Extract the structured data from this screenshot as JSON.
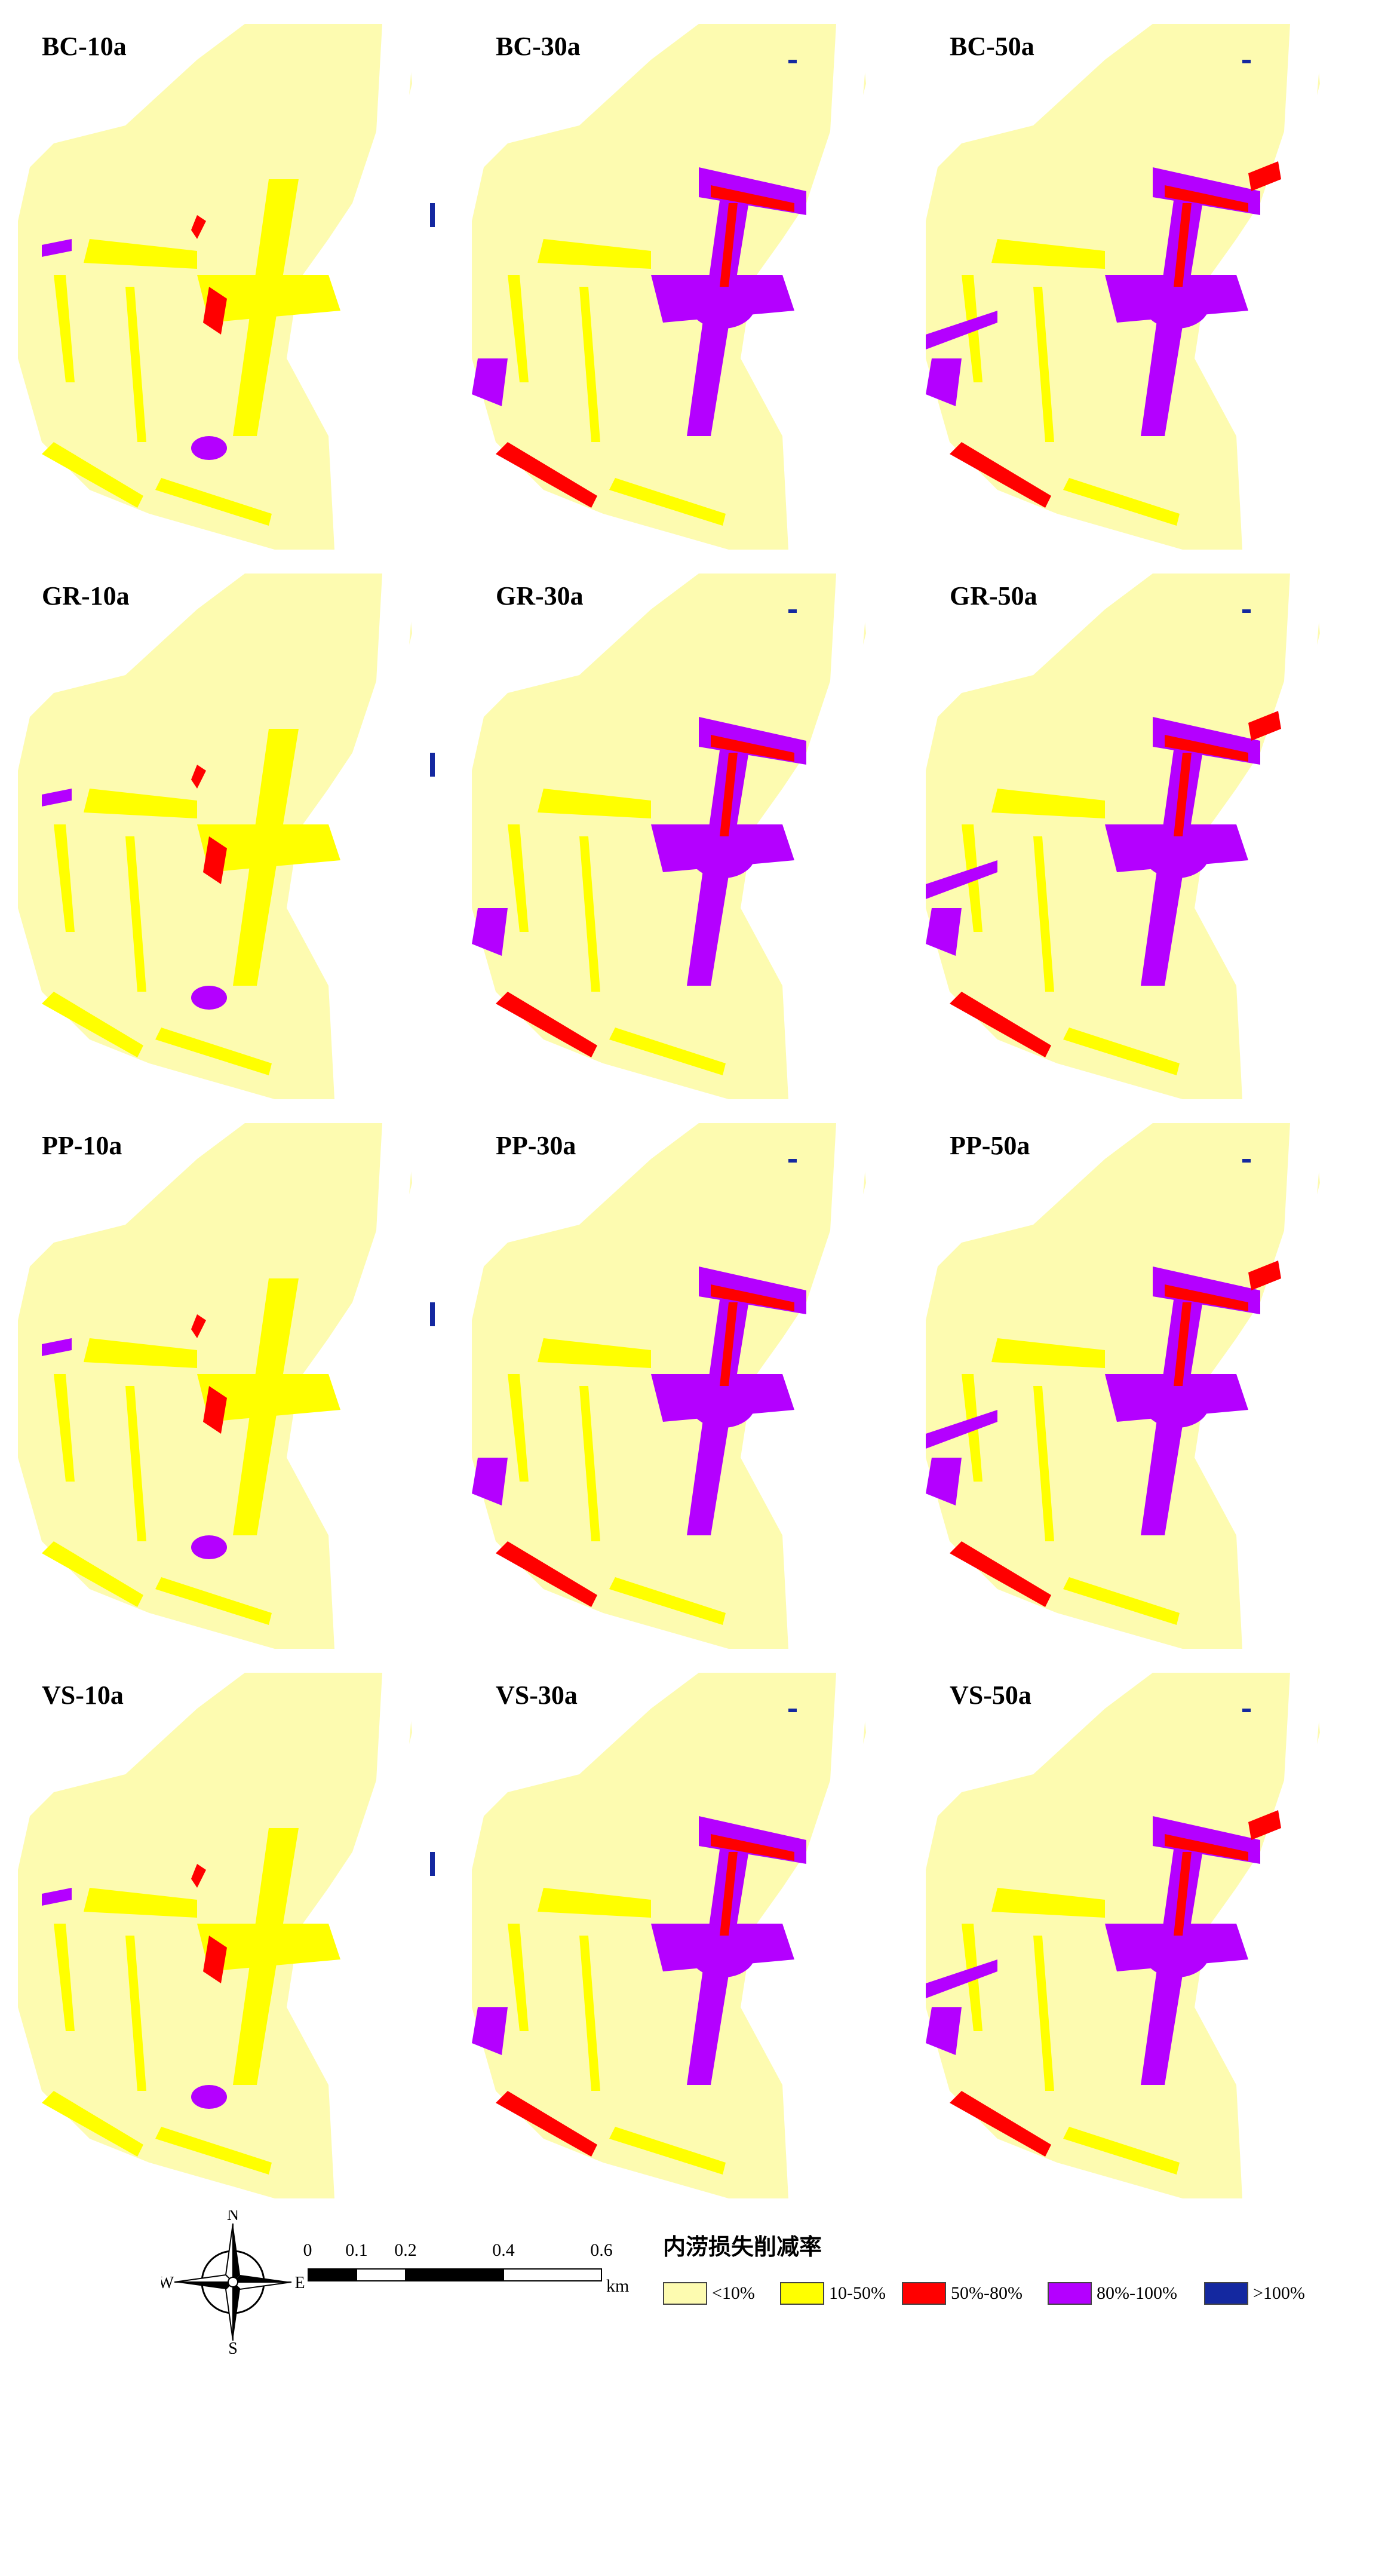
{
  "panels": [
    {
      "title": "BC-10a",
      "level": "10a"
    },
    {
      "title": "BC-30a",
      "level": "30a"
    },
    {
      "title": "BC-50a",
      "level": "50a"
    },
    {
      "title": "GR-10a",
      "level": "10a"
    },
    {
      "title": "GR-30a",
      "level": "30a"
    },
    {
      "title": "GR-50a",
      "level": "50a"
    },
    {
      "title": "PP-10a",
      "level": "10a"
    },
    {
      "title": "PP-30a",
      "level": "30a"
    },
    {
      "title": "PP-50a",
      "level": "50a"
    },
    {
      "title": "VS-10a",
      "level": "10a"
    },
    {
      "title": "VS-30a",
      "level": "30a"
    },
    {
      "title": "VS-50a",
      "level": "50a"
    }
  ],
  "compass": {
    "n": "N",
    "s": "S",
    "e": "E",
    "w": "W"
  },
  "scale_bar": {
    "ticks": [
      "0",
      "0.1",
      "0.2",
      "0.4",
      "0.6"
    ],
    "unit": "km"
  },
  "legend": {
    "title": "内涝损失削减率",
    "items": [
      {
        "label": "<10%",
        "color": "#fdfbb0"
      },
      {
        "label": "10-50%",
        "color": "#ffff00"
      },
      {
        "label": "50%-80%",
        "color": "#ff0000"
      },
      {
        "label": "80%-100%",
        "color": "#b400ff"
      },
      {
        "label": ">100%",
        "color": "#1428a0"
      }
    ]
  }
}
